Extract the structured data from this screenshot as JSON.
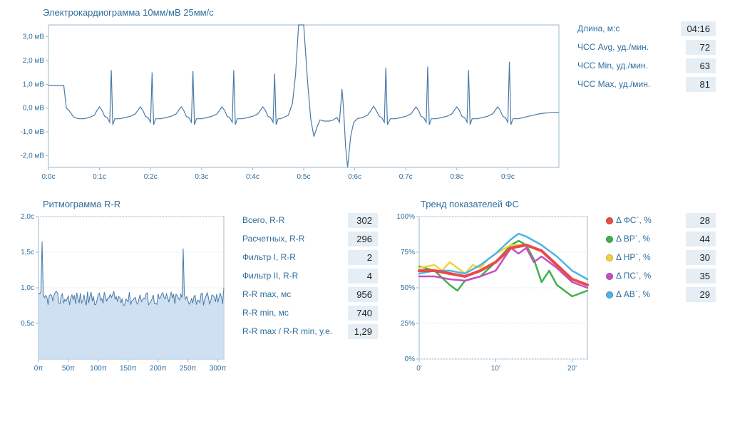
{
  "ecg": {
    "title": "Электрокардиограмма 10мм/мВ 25мм/с",
    "ylim": [
      -2.5,
      3.5
    ],
    "yticks": [
      -2.0,
      -1.0,
      0.0,
      1.0,
      2.0,
      3.0
    ],
    "ytick_labels": [
      "-2,0 мВ",
      "-1,0 мВ",
      "0,0 мВ",
      "1,0 мВ",
      "2,0 мВ",
      "3,0 мВ"
    ],
    "xlim": [
      0,
      1.0
    ],
    "xticks": [
      0.0,
      0.1,
      0.2,
      0.3,
      0.4,
      0.5,
      0.6,
      0.7,
      0.8,
      0.9
    ],
    "xtick_labels": [
      "0:0c",
      "0:1c",
      "0:2c",
      "0:3c",
      "0:4c",
      "0:5c",
      "0:6c",
      "0:7c",
      "0:8c",
      "0:9c"
    ],
    "line_color": "#4a7aa5",
    "line_width": 1.2,
    "background_color": "#ffffff",
    "grid_color": "#e0e8ef",
    "axis_color": "#9bb7cc",
    "label_color": "#2e6e9e",
    "label_fontsize": 10,
    "series": [
      [
        0.0,
        0.95
      ],
      [
        0.01,
        0.95
      ],
      [
        0.02,
        0.95
      ],
      [
        0.03,
        0.95
      ],
      [
        0.035,
        0.0
      ],
      [
        0.04,
        -0.1
      ],
      [
        0.05,
        -0.4
      ],
      [
        0.06,
        -0.45
      ],
      [
        0.07,
        -0.45
      ],
      [
        0.08,
        -0.4
      ],
      [
        0.09,
        -0.3
      ],
      [
        0.095,
        -0.1
      ],
      [
        0.1,
        0.05
      ],
      [
        0.105,
        -0.1
      ],
      [
        0.11,
        -0.35
      ],
      [
        0.115,
        -0.4
      ],
      [
        0.12,
        -0.6
      ],
      [
        0.123,
        1.6
      ],
      [
        0.126,
        -0.7
      ],
      [
        0.13,
        -0.45
      ],
      [
        0.14,
        -0.45
      ],
      [
        0.15,
        -0.4
      ],
      [
        0.16,
        -0.35
      ],
      [
        0.17,
        -0.25
      ],
      [
        0.175,
        -0.1
      ],
      [
        0.18,
        0.05
      ],
      [
        0.185,
        -0.1
      ],
      [
        0.19,
        -0.35
      ],
      [
        0.195,
        -0.4
      ],
      [
        0.2,
        -0.6
      ],
      [
        0.203,
        1.5
      ],
      [
        0.206,
        -0.7
      ],
      [
        0.21,
        -0.45
      ],
      [
        0.22,
        -0.45
      ],
      [
        0.23,
        -0.4
      ],
      [
        0.24,
        -0.35
      ],
      [
        0.25,
        -0.25
      ],
      [
        0.255,
        -0.1
      ],
      [
        0.26,
        0.05
      ],
      [
        0.265,
        -0.1
      ],
      [
        0.27,
        -0.35
      ],
      [
        0.275,
        -0.4
      ],
      [
        0.28,
        -0.6
      ],
      [
        0.283,
        1.55
      ],
      [
        0.286,
        -0.7
      ],
      [
        0.29,
        -0.45
      ],
      [
        0.3,
        -0.45
      ],
      [
        0.31,
        -0.4
      ],
      [
        0.32,
        -0.35
      ],
      [
        0.33,
        -0.25
      ],
      [
        0.335,
        -0.1
      ],
      [
        0.34,
        0.05
      ],
      [
        0.345,
        -0.1
      ],
      [
        0.35,
        -0.35
      ],
      [
        0.355,
        -0.4
      ],
      [
        0.36,
        -0.6
      ],
      [
        0.363,
        1.6
      ],
      [
        0.366,
        -0.7
      ],
      [
        0.37,
        -0.45
      ],
      [
        0.38,
        -0.45
      ],
      [
        0.39,
        -0.4
      ],
      [
        0.4,
        -0.35
      ],
      [
        0.41,
        -0.25
      ],
      [
        0.415,
        -0.1
      ],
      [
        0.42,
        0.05
      ],
      [
        0.425,
        -0.1
      ],
      [
        0.43,
        -0.35
      ],
      [
        0.435,
        -0.4
      ],
      [
        0.44,
        -0.6
      ],
      [
        0.443,
        1.45
      ],
      [
        0.446,
        -0.7
      ],
      [
        0.45,
        -0.45
      ],
      [
        0.455,
        -0.45
      ],
      [
        0.46,
        -0.4
      ],
      [
        0.47,
        -0.3
      ],
      [
        0.478,
        0.2
      ],
      [
        0.484,
        1.4
      ],
      [
        0.49,
        3.5
      ],
      [
        0.5,
        3.5
      ],
      [
        0.508,
        1.0
      ],
      [
        0.514,
        -0.5
      ],
      [
        0.52,
        -1.2
      ],
      [
        0.526,
        -0.8
      ],
      [
        0.532,
        -0.5
      ],
      [
        0.54,
        -0.55
      ],
      [
        0.55,
        -0.55
      ],
      [
        0.558,
        -0.5
      ],
      [
        0.565,
        -0.4
      ],
      [
        0.57,
        -0.6
      ],
      [
        0.575,
        0.8
      ],
      [
        0.578,
        0.0
      ],
      [
        0.582,
        -1.6
      ],
      [
        0.586,
        -2.5
      ],
      [
        0.592,
        -1.2
      ],
      [
        0.598,
        -0.6
      ],
      [
        0.605,
        -0.45
      ],
      [
        0.615,
        -0.4
      ],
      [
        0.625,
        -0.3
      ],
      [
        0.632,
        -0.1
      ],
      [
        0.637,
        0.08
      ],
      [
        0.642,
        -0.1
      ],
      [
        0.648,
        -0.35
      ],
      [
        0.653,
        -0.4
      ],
      [
        0.658,
        -0.6
      ],
      [
        0.661,
        1.7
      ],
      [
        0.664,
        -0.7
      ],
      [
        0.67,
        -0.45
      ],
      [
        0.68,
        -0.45
      ],
      [
        0.69,
        -0.4
      ],
      [
        0.7,
        -0.35
      ],
      [
        0.71,
        -0.25
      ],
      [
        0.715,
        -0.1
      ],
      [
        0.72,
        0.05
      ],
      [
        0.725,
        -0.1
      ],
      [
        0.73,
        -0.35
      ],
      [
        0.735,
        -0.4
      ],
      [
        0.74,
        -0.6
      ],
      [
        0.743,
        1.75
      ],
      [
        0.746,
        -0.7
      ],
      [
        0.75,
        -0.45
      ],
      [
        0.76,
        -0.45
      ],
      [
        0.77,
        -0.4
      ],
      [
        0.78,
        -0.35
      ],
      [
        0.79,
        -0.25
      ],
      [
        0.795,
        -0.1
      ],
      [
        0.8,
        0.05
      ],
      [
        0.805,
        -0.1
      ],
      [
        0.81,
        -0.35
      ],
      [
        0.815,
        -0.4
      ],
      [
        0.82,
        -0.6
      ],
      [
        0.823,
        1.6
      ],
      [
        0.826,
        -0.7
      ],
      [
        0.83,
        -0.45
      ],
      [
        0.84,
        -0.45
      ],
      [
        0.85,
        -0.4
      ],
      [
        0.86,
        -0.35
      ],
      [
        0.87,
        -0.25
      ],
      [
        0.875,
        -0.1
      ],
      [
        0.88,
        0.05
      ],
      [
        0.885,
        -0.1
      ],
      [
        0.89,
        -0.35
      ],
      [
        0.895,
        -0.4
      ],
      [
        0.9,
        -0.6
      ],
      [
        0.903,
        1.95
      ],
      [
        0.906,
        -0.7
      ],
      [
        0.91,
        -0.45
      ],
      [
        0.92,
        -0.45
      ],
      [
        0.93,
        -0.4
      ],
      [
        0.94,
        -0.35
      ],
      [
        0.95,
        -0.3
      ],
      [
        0.96,
        -0.25
      ],
      [
        0.97,
        -0.22
      ],
      [
        0.98,
        -0.2
      ],
      [
        0.99,
        -0.18
      ],
      [
        1.0,
        -0.18
      ]
    ]
  },
  "ecg_stats": [
    {
      "label": "Длина, м:с",
      "value": "04:16"
    },
    {
      "label": "ЧСС Avg, уд./мин.",
      "value": "72"
    },
    {
      "label": "ЧСС Min, уд./мин.",
      "value": "63"
    },
    {
      "label": "ЧСС Max, уд./мин.",
      "value": "81"
    }
  ],
  "rr": {
    "title": "Ритмограмма R-R",
    "ylim": [
      0,
      2.0
    ],
    "yticks": [
      0.5,
      1.0,
      1.5,
      2.0
    ],
    "ytick_labels": [
      "0,5c",
      "1,0c",
      "1,5c",
      "2,0c"
    ],
    "xlim": [
      0,
      310
    ],
    "xticks": [
      0,
      50,
      100,
      150,
      200,
      250,
      300
    ],
    "xtick_labels": [
      "0π",
      "50π",
      "100π",
      "150π",
      "200π",
      "250π",
      "300π"
    ],
    "line_color": "#4a7aa5",
    "fill_color": "#c6daee",
    "line_width": 1,
    "grid_color": "#e0e8ef",
    "axis_color": "#9bb7cc",
    "label_color": "#2e6e9e",
    "spikes": [
      [
        5,
        1.65
      ],
      [
        242,
        1.55
      ]
    ],
    "baseline": 0.85,
    "jitter": 0.1
  },
  "rr_stats": [
    {
      "label": "Всего, R-R",
      "value": "302"
    },
    {
      "label": "Расчетных, R-R",
      "value": "296"
    },
    {
      "label": "Фильтр I, R-R",
      "value": "2"
    },
    {
      "label": "Фильтр II, R-R",
      "value": "4"
    },
    {
      "label": "R-R max, мс",
      "value": "956"
    },
    {
      "label": "R-R min, мс",
      "value": "740"
    },
    {
      "label": "R-R max / R-R min, у.е.",
      "value": "1,29"
    }
  ],
  "trend": {
    "title": "Тренд показателей ФС",
    "ylim": [
      0,
      100
    ],
    "yticks": [
      0,
      25,
      50,
      75,
      100
    ],
    "ytick_labels": [
      "0%",
      "25%",
      "50%",
      "75%",
      "100%"
    ],
    "xlim": [
      0,
      22
    ],
    "xticks": [
      0,
      10,
      20
    ],
    "xtick_labels": [
      "0'",
      "10'",
      "20'"
    ],
    "grid_color": "#e0e8ef",
    "axis_color": "#9bb7cc",
    "label_color": "#2e6e9e",
    "line_width": 2.5,
    "main_line_width": 4,
    "series": [
      {
        "name": "Δ ФС`",
        "color": "#e94b4b",
        "width": 4,
        "data": [
          [
            0,
            62
          ],
          [
            2,
            62
          ],
          [
            4,
            60
          ],
          [
            6,
            58
          ],
          [
            8,
            62
          ],
          [
            10,
            68
          ],
          [
            12,
            78
          ],
          [
            14,
            80
          ],
          [
            16,
            76
          ],
          [
            18,
            66
          ],
          [
            20,
            56
          ],
          [
            22,
            52
          ]
        ]
      },
      {
        "name": "Δ ВР`",
        "color": "#3fb24d",
        "width": 2.5,
        "data": [
          [
            0,
            65
          ],
          [
            2,
            62
          ],
          [
            4,
            52
          ],
          [
            5,
            48
          ],
          [
            6,
            55
          ],
          [
            8,
            58
          ],
          [
            10,
            68
          ],
          [
            12,
            80
          ],
          [
            13,
            83
          ],
          [
            14,
            80
          ],
          [
            15,
            70
          ],
          [
            16,
            54
          ],
          [
            17,
            62
          ],
          [
            18,
            52
          ],
          [
            20,
            44
          ],
          [
            22,
            48
          ]
        ]
      },
      {
        "name": "Δ НР`",
        "color": "#f1d23c",
        "width": 2.5,
        "data": [
          [
            0,
            64
          ],
          [
            2,
            66
          ],
          [
            3,
            62
          ],
          [
            4,
            68
          ],
          [
            5,
            64
          ],
          [
            6,
            60
          ],
          [
            7,
            66
          ],
          [
            8,
            64
          ],
          [
            9,
            70
          ],
          [
            10,
            74
          ],
          [
            12,
            80
          ],
          [
            14,
            80
          ],
          [
            16,
            76
          ],
          [
            18,
            66
          ],
          [
            20,
            54
          ],
          [
            22,
            50
          ]
        ]
      },
      {
        "name": "Δ ПС`",
        "color": "#c74fc5",
        "width": 2.5,
        "data": [
          [
            0,
            58
          ],
          [
            2,
            58
          ],
          [
            4,
            56
          ],
          [
            6,
            55
          ],
          [
            8,
            58
          ],
          [
            10,
            62
          ],
          [
            11,
            70
          ],
          [
            12,
            78
          ],
          [
            13,
            74
          ],
          [
            14,
            78
          ],
          [
            15,
            68
          ],
          [
            16,
            72
          ],
          [
            18,
            64
          ],
          [
            20,
            54
          ],
          [
            22,
            50
          ]
        ]
      },
      {
        "name": "Δ АВ`",
        "color": "#4db3e6",
        "width": 2.5,
        "data": [
          [
            0,
            60
          ],
          [
            2,
            62
          ],
          [
            4,
            62
          ],
          [
            6,
            60
          ],
          [
            8,
            66
          ],
          [
            10,
            74
          ],
          [
            12,
            84
          ],
          [
            13,
            88
          ],
          [
            14,
            86
          ],
          [
            16,
            80
          ],
          [
            18,
            72
          ],
          [
            20,
            62
          ],
          [
            22,
            56
          ]
        ]
      }
    ]
  },
  "trend_stats": [
    {
      "label": "Δ ФС`, %",
      "value": "28",
      "color": "#e94b4b"
    },
    {
      "label": "Δ ВР`, %",
      "value": "44",
      "color": "#3fb24d"
    },
    {
      "label": "Δ НР`, %",
      "value": "30",
      "color": "#f1d23c"
    },
    {
      "label": "Δ ПС`, %",
      "value": "35",
      "color": "#c74fc5"
    },
    {
      "label": "Δ АВ`, %",
      "value": "29",
      "color": "#4db3e6"
    }
  ]
}
